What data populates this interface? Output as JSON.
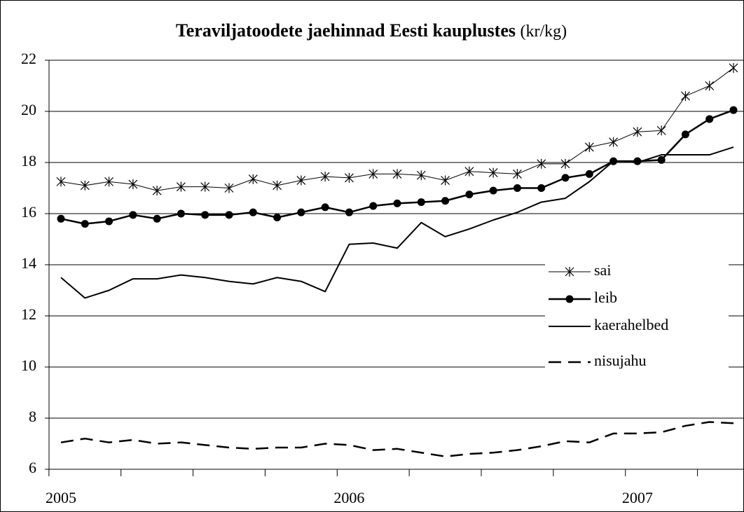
{
  "chart_data": {
    "type": "line",
    "title": "Teraviljatoodete jaehinnad Eesti kauplustes",
    "unit": "(kr/kg)",
    "categories": [
      "2005",
      null,
      null,
      null,
      null,
      null,
      null,
      null,
      null,
      null,
      null,
      null,
      "2006",
      null,
      null,
      null,
      null,
      null,
      null,
      null,
      null,
      null,
      null,
      null,
      "2007",
      null,
      null,
      null,
      null
    ],
    "ylim": [
      6,
      22
    ],
    "yticks": [
      6,
      8,
      10,
      12,
      14,
      16,
      18,
      20,
      22
    ],
    "grid": true,
    "legend": "right",
    "series": [
      {
        "name": "sai",
        "color": "#000000",
        "marker": "star",
        "dash": false,
        "width": 1,
        "values": [
          17.25,
          17.1,
          17.25,
          17.15,
          16.9,
          17.05,
          17.05,
          17.0,
          17.35,
          17.1,
          17.3,
          17.45,
          17.4,
          17.55,
          17.55,
          17.5,
          17.3,
          17.65,
          17.6,
          17.55,
          17.95,
          17.95,
          18.6,
          18.8,
          19.2,
          19.25,
          20.6,
          21.0,
          21.7
        ]
      },
      {
        "name": "leib",
        "color": "#000000",
        "marker": "circle",
        "dash": false,
        "width": 2.5,
        "values": [
          15.8,
          15.6,
          15.7,
          15.95,
          15.8,
          16.0,
          15.95,
          15.95,
          16.05,
          15.85,
          16.05,
          16.25,
          16.05,
          16.3,
          16.4,
          16.45,
          16.5,
          16.75,
          16.9,
          17.0,
          17.0,
          17.4,
          17.55,
          18.05,
          18.05,
          18.1,
          19.1,
          19.7,
          20.05
        ]
      },
      {
        "name": "kaerahelbed",
        "color": "#000000",
        "marker": "none",
        "dash": false,
        "width": 2,
        "values": [
          13.5,
          12.7,
          13.0,
          13.45,
          13.45,
          13.6,
          13.5,
          13.35,
          13.25,
          13.5,
          13.35,
          12.95,
          14.8,
          14.85,
          14.65,
          15.65,
          15.1,
          15.4,
          15.75,
          16.05,
          16.45,
          16.6,
          17.25,
          18.05,
          18.0,
          18.3,
          18.3,
          18.3,
          18.6
        ]
      },
      {
        "name": "nisujahu",
        "color": "#000000",
        "marker": "none",
        "dash": true,
        "width": 2.5,
        "values": [
          7.05,
          7.2,
          7.05,
          7.15,
          7.0,
          7.05,
          6.95,
          6.85,
          6.8,
          6.85,
          6.85,
          7.0,
          6.95,
          6.75,
          6.8,
          6.65,
          6.5,
          6.6,
          6.65,
          6.75,
          6.9,
          7.1,
          7.05,
          7.4,
          7.4,
          7.45,
          7.7,
          7.85,
          7.8
        ]
      }
    ]
  }
}
